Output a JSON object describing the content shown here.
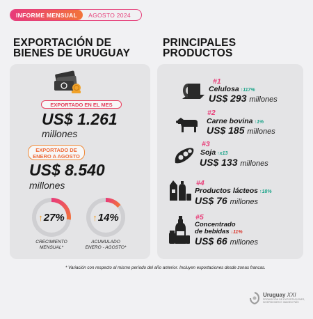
{
  "header": {
    "label": "INFORME MENSUAL",
    "period": "AGOSTO 2024"
  },
  "left": {
    "title_line1": "EXPORTACIÓN DE",
    "title_line2": "BIENES DE URUGUAY",
    "month_label": "EXPORTADO EN EL MES",
    "month_value": "US$ 1.261",
    "month_unit": "millones",
    "ytd_label_line1": "EXPORTADO DE",
    "ytd_label_line2": "ENERO A AGOSTO",
    "ytd_value": "US$ 8.540",
    "ytd_unit": "millones",
    "growth_month": {
      "value": "27%",
      "label_line1": "CRECIMIENTO",
      "label_line2": "MENSUAL*",
      "fraction": 0.27
    },
    "growth_ytd": {
      "value": "14%",
      "label_line1": "ACUMULADO",
      "label_line2": "ENERO - AGOSTO*",
      "fraction": 0.14
    }
  },
  "right": {
    "title_line1": "PRINCIPALES",
    "title_line2": "PRODUCTOS",
    "products": [
      {
        "rank": "#1",
        "name": "Celulosa",
        "change": "117%",
        "direction": "up",
        "value": "US$ 293",
        "unit": "millones",
        "icon": "pulp-roll-icon"
      },
      {
        "rank": "#2",
        "name": "Carne bovina",
        "change": "1%",
        "direction": "up",
        "value": "US$ 185",
        "unit": "millones",
        "icon": "cow-icon"
      },
      {
        "rank": "#3",
        "name": "Soja",
        "change": "x13",
        "direction": "up",
        "value": "US$ 133",
        "unit": "millones",
        "icon": "soy-icon"
      },
      {
        "rank": "#4",
        "name": "Productos lácteos",
        "change": "18%",
        "direction": "up",
        "value": "US$ 76",
        "unit": "millones",
        "icon": "dairy-icon"
      },
      {
        "rank": "#5",
        "name_line1": "Concentrado",
        "name_line2": "de bebidas",
        "change": "11%",
        "direction": "down",
        "value": "US$ 66",
        "unit": "millones",
        "icon": "beverage-icon"
      }
    ]
  },
  "footnote": "* Variación con respecto al mismo período del año anterior. Incluyen exportaciones desde zonas francas.",
  "logo": {
    "name_bold": "Uruguay",
    "name_rest": " XXI",
    "sub_line1": "PROMOCIÓN DE EXPORTACIONES,",
    "sub_line2": "INVERSIONES E IMAGEN PAÍS"
  },
  "colors": {
    "accent_pink": "#e83a7a",
    "accent_orange": "#f2743a",
    "up_green": "#1ca48a",
    "down_red": "#d9342a",
    "arrow_orange": "#f39a1a"
  }
}
